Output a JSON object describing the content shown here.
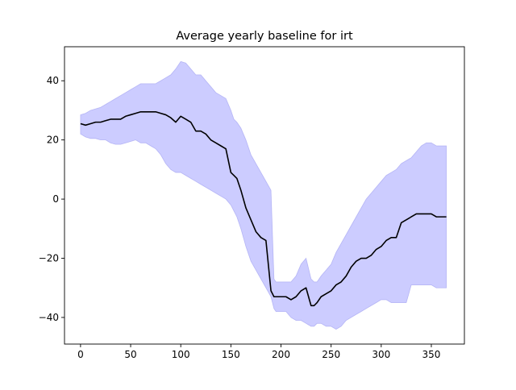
{
  "chart_data": {
    "type": "line",
    "title": "Average yearly baseline for irt",
    "xlabel": "",
    "ylabel": "",
    "xlim": [
      -16,
      383
    ],
    "ylim": [
      -49,
      51.5
    ],
    "xticks": [
      0,
      50,
      100,
      150,
      200,
      250,
      300,
      350
    ],
    "yticks": [
      -40,
      -20,
      0,
      20,
      40
    ],
    "grid": false,
    "legend": "none",
    "colors": {
      "line": "#000000",
      "band_fill": "#ccccff",
      "band_edge": "#9999ee",
      "axes": "#000000"
    },
    "series": [
      {
        "role": "mean",
        "x": [
          0,
          5,
          10,
          15,
          20,
          25,
          30,
          35,
          40,
          45,
          50,
          55,
          60,
          65,
          70,
          75,
          80,
          85,
          90,
          95,
          100,
          105,
          110,
          115,
          120,
          125,
          130,
          135,
          140,
          145,
          150,
          153,
          156,
          160,
          165,
          170,
          175,
          180,
          185,
          190,
          193,
          195,
          200,
          205,
          210,
          215,
          220,
          225,
          230,
          233,
          236,
          240,
          245,
          250,
          255,
          260,
          265,
          270,
          275,
          280,
          285,
          290,
          295,
          300,
          305,
          310,
          315,
          320,
          325,
          330,
          335,
          340,
          345,
          350,
          355,
          360,
          365
        ],
        "y": [
          25.5,
          25,
          25.5,
          26,
          26,
          26.5,
          27,
          27,
          27,
          28,
          28.5,
          29,
          29.5,
          29.5,
          29.5,
          29.5,
          29,
          28.5,
          27.5,
          26,
          28,
          27,
          26,
          23,
          23,
          22,
          20,
          19,
          18,
          17,
          9,
          8,
          7,
          3,
          -3,
          -7,
          -11,
          -13,
          -14,
          -31,
          -33,
          -33,
          -33,
          -33,
          -34,
          -33,
          -31,
          -30,
          -36,
          -36,
          -35,
          -33,
          -32,
          -31,
          -29,
          -28,
          -26,
          -23,
          -21,
          -20,
          -20,
          -19,
          -17,
          -16,
          -14,
          -13,
          -13,
          -8,
          -7,
          -6,
          -5,
          -5,
          -5,
          -5,
          -6,
          -6,
          -6
        ]
      },
      {
        "role": "upper",
        "x": [
          0,
          5,
          10,
          15,
          20,
          25,
          30,
          35,
          40,
          45,
          50,
          55,
          60,
          65,
          70,
          75,
          80,
          85,
          90,
          95,
          100,
          105,
          110,
          115,
          120,
          125,
          130,
          135,
          140,
          145,
          150,
          153,
          156,
          160,
          165,
          170,
          175,
          180,
          185,
          190,
          193,
          195,
          200,
          205,
          210,
          215,
          220,
          225,
          230,
          233,
          236,
          240,
          245,
          250,
          255,
          260,
          265,
          270,
          275,
          280,
          285,
          290,
          295,
          300,
          305,
          310,
          315,
          320,
          325,
          330,
          335,
          340,
          345,
          350,
          355,
          360,
          365
        ],
        "y": [
          28.5,
          29,
          30,
          30.5,
          31,
          32,
          33,
          34,
          35,
          36,
          37,
          38,
          39,
          39,
          39,
          39,
          40,
          41,
          42,
          44,
          46.5,
          46,
          44,
          42,
          42,
          40,
          38,
          36,
          35,
          34,
          30,
          27,
          26,
          24,
          20,
          15,
          12,
          9,
          6,
          3,
          -27,
          -28,
          -28,
          -28,
          -28,
          -26,
          -22,
          -20,
          -27,
          -28,
          -28,
          -26,
          -24,
          -22,
          -18,
          -15,
          -12,
          -9,
          -6,
          -3,
          0,
          2,
          4,
          6,
          8,
          9,
          10,
          12,
          13,
          14,
          16,
          18,
          19,
          19,
          18,
          18,
          18
        ]
      },
      {
        "role": "lower",
        "x": [
          0,
          5,
          10,
          15,
          20,
          25,
          30,
          35,
          40,
          45,
          50,
          55,
          60,
          65,
          70,
          75,
          80,
          85,
          90,
          95,
          100,
          105,
          110,
          115,
          120,
          125,
          130,
          135,
          140,
          145,
          150,
          153,
          156,
          160,
          165,
          170,
          175,
          180,
          185,
          190,
          193,
          195,
          200,
          205,
          210,
          215,
          220,
          225,
          230,
          233,
          236,
          240,
          245,
          250,
          255,
          260,
          265,
          270,
          275,
          280,
          285,
          290,
          295,
          300,
          305,
          310,
          315,
          320,
          325,
          330,
          335,
          340,
          345,
          350,
          355,
          360,
          365
        ],
        "y": [
          22,
          21,
          20.5,
          20.5,
          20,
          20,
          19,
          18.5,
          18.5,
          19,
          19.5,
          20,
          19,
          19,
          18,
          17,
          15,
          12,
          10,
          9,
          9,
          8,
          7,
          6,
          5,
          4,
          3,
          2,
          1,
          0,
          -2,
          -4,
          -6,
          -10,
          -16,
          -21,
          -24,
          -27,
          -30,
          -33,
          -37,
          -38,
          -38,
          -38,
          -40,
          -41,
          -41,
          -42,
          -43,
          -43,
          -42,
          -42,
          -43,
          -43,
          -44,
          -43,
          -41,
          -40,
          -39,
          -38,
          -37,
          -36,
          -35,
          -34,
          -34,
          -35,
          -35,
          -35,
          -35,
          -29,
          -29,
          -29,
          -29,
          -29,
          -30,
          -30,
          -30
        ]
      }
    ]
  }
}
